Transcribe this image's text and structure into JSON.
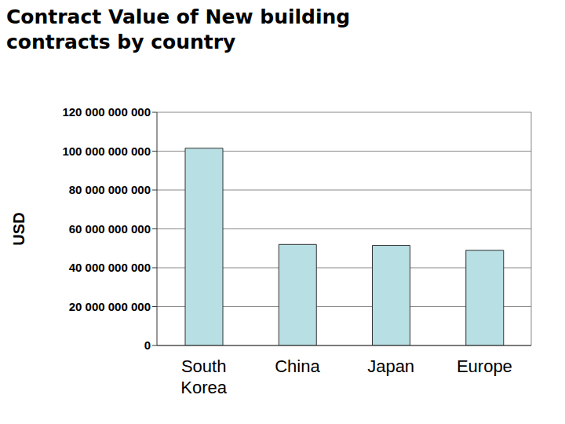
{
  "chart_data": {
    "type": "bar",
    "title": "Contract Value of New building contracts by country",
    "y_label": "USD",
    "categories": [
      "South Korea",
      "China",
      "Japan",
      "Europe"
    ],
    "values": [
      101500000000,
      52000000000,
      51500000000,
      49000000000
    ],
    "color": "#b8dfe3",
    "ylim": [
      0,
      120000000000
    ],
    "yticks": [
      0,
      {
        "value": 20000000000,
        "label": "20 000 000 000"
      },
      {
        "value": 40000000000,
        "label": "40 000 000 000"
      },
      {
        "value": 60000000000,
        "label": "60 000 000 000"
      },
      {
        "value": 80000000000,
        "label": "80 000 000 000"
      },
      {
        "value": 100000000000,
        "label": "100 000 000 000"
      },
      {
        "value": 120000000000,
        "label": "120 000 000 000"
      }
    ],
    "grid": true
  }
}
